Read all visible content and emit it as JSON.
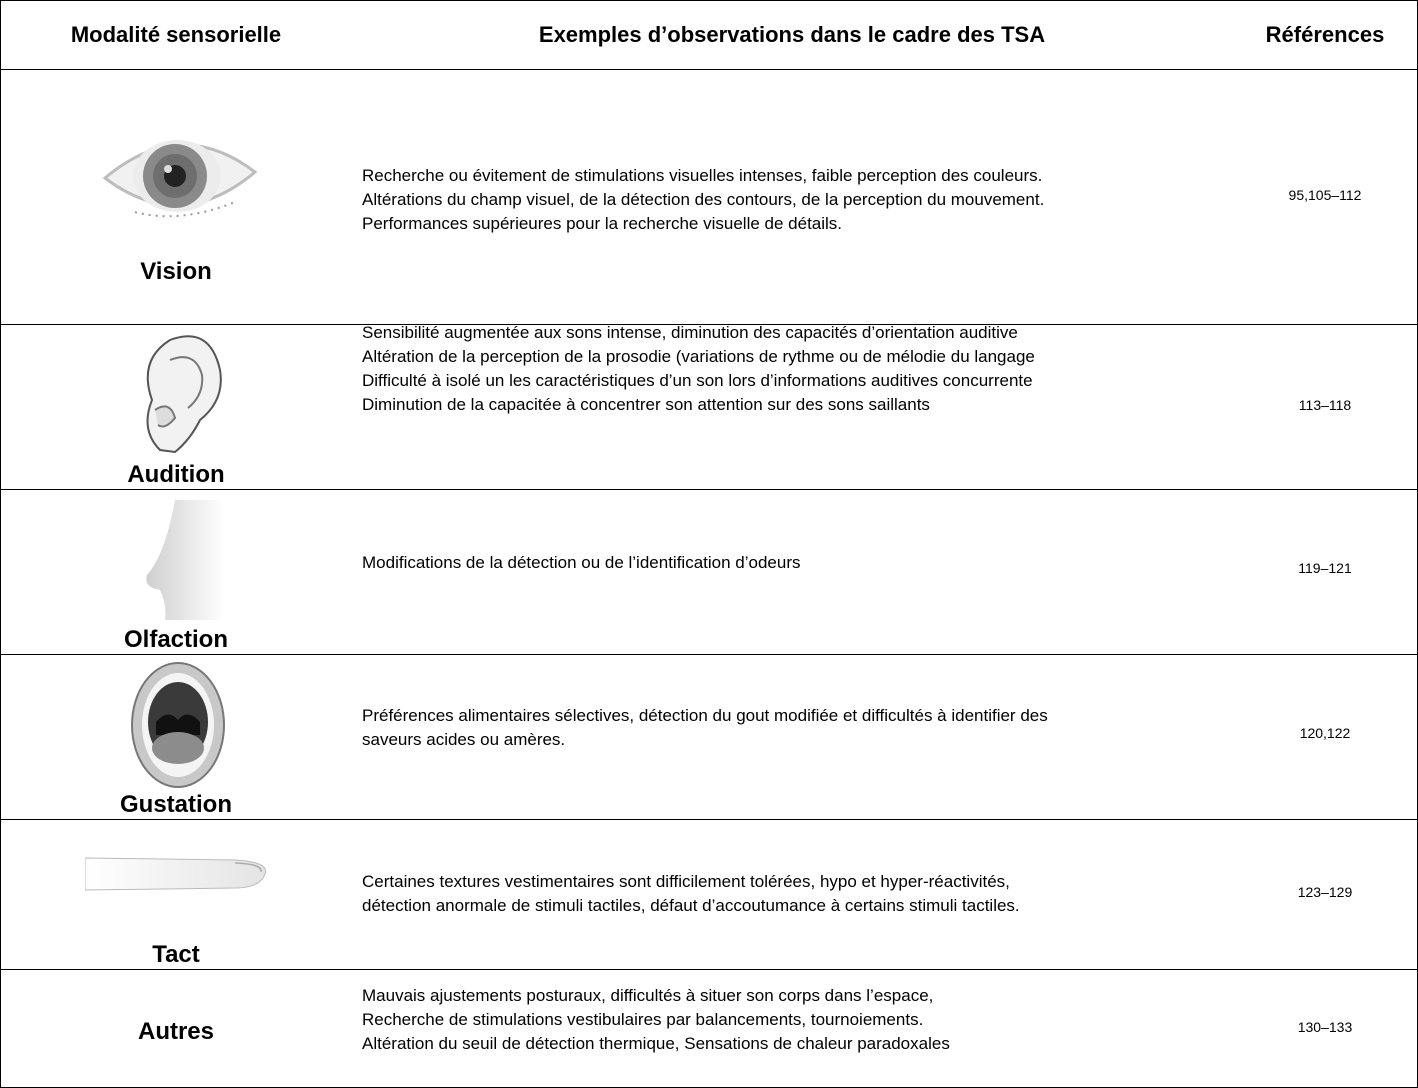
{
  "table": {
    "header": [
      "Modalité sensorielle",
      "Exemples d’observations dans le cadre des TSA",
      "Références"
    ],
    "rows": [
      {
        "modality": "Vision",
        "observations": [
          "Recherche ou évitement de stimulations visuelles intenses, faible perception des couleurs.",
          "Altérations du champ visuel, de la détection des contours, de la perception du mouvement.",
          "Performances supérieures pour la recherche visuelle de détails."
        ],
        "references": "95,105–112"
      },
      {
        "modality": "Audition",
        "observations": [
          "Sensibilité augmentée aux sons intense, diminution des capacités d’orientation auditive",
          "Altération de la perception de la prosodie (variations de rythme ou de mélodie du langage",
          "Difficulté à isolé un les caractéristiques d’un son lors d’informations auditives concurrente",
          "Diminution de la capacitée à concentrer son attention sur des sons saillants"
        ],
        "references": "113–118"
      },
      {
        "modality": "Olfaction",
        "observations": [
          "Modifications de la détection ou de l’identification d’odeurs"
        ],
        "references": "119–121"
      },
      {
        "modality": "Gustation",
        "observations": [
          "Préférences alimentaires sélectives, détection du gout modifiée et difficultés à identifier des",
          "saveurs acides ou amères."
        ],
        "references": "120,122"
      },
      {
        "modality": "Tact",
        "observations": [
          "Certaines textures vestimentaires sont difficilement tolérées, hypo et hyper-réactivités,",
          "détection anormale de stimuli tactiles, défaut d’accoutumance à certains stimuli tactiles."
        ],
        "references": "123–129"
      },
      {
        "modality": "Autres",
        "observations": [
          "Mauvais ajustements posturaux, difficultés à situer son corps dans l’espace,",
          "Recherche de stimulations vestibulaires par balancements, tournoiements.",
          "Altération du seuil de détection thermique, Sensations de chaleur paradoxales"
        ],
        "references": "130–133"
      }
    ]
  }
}
